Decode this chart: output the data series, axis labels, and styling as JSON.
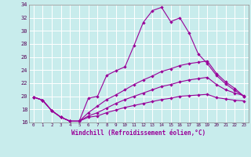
{
  "xlabel": "Windchill (Refroidissement éolien,°C)",
  "background_color": "#c8ecec",
  "line_color": "#990099",
  "grid_color": "#ffffff",
  "xlim": [
    -0.5,
    23.5
  ],
  "ylim": [
    16,
    34
  ],
  "yticks": [
    16,
    18,
    20,
    22,
    24,
    26,
    28,
    30,
    32,
    34
  ],
  "xticks": [
    0,
    1,
    2,
    3,
    4,
    5,
    6,
    7,
    8,
    9,
    10,
    11,
    12,
    13,
    14,
    15,
    16,
    17,
    18,
    19,
    20,
    21,
    22,
    23
  ],
  "series": [
    [
      19.9,
      19.4,
      17.8,
      16.8,
      16.2,
      16.2,
      19.7,
      20.0,
      23.2,
      23.9,
      24.5,
      27.8,
      31.3,
      33.1,
      33.6,
      31.4,
      32.0,
      29.7,
      26.5,
      25.0,
      23.2,
      21.9,
      20.9,
      20.0
    ],
    [
      19.9,
      19.4,
      17.8,
      16.8,
      16.2,
      16.2,
      17.5,
      18.5,
      19.5,
      20.2,
      21.0,
      21.8,
      22.5,
      23.1,
      23.8,
      24.2,
      24.7,
      25.0,
      25.2,
      25.4,
      23.5,
      22.2,
      21.2,
      20.0
    ],
    [
      19.9,
      19.4,
      17.8,
      16.8,
      16.2,
      16.2,
      17.0,
      17.5,
      18.2,
      18.9,
      19.5,
      20.0,
      20.5,
      21.0,
      21.5,
      21.8,
      22.2,
      22.5,
      22.7,
      22.9,
      21.8,
      21.0,
      20.5,
      20.1
    ],
    [
      19.9,
      19.4,
      17.8,
      16.8,
      16.2,
      16.2,
      16.8,
      17.0,
      17.5,
      17.9,
      18.3,
      18.6,
      18.9,
      19.2,
      19.5,
      19.7,
      20.0,
      20.1,
      20.2,
      20.3,
      19.8,
      19.6,
      19.4,
      19.3
    ]
  ]
}
